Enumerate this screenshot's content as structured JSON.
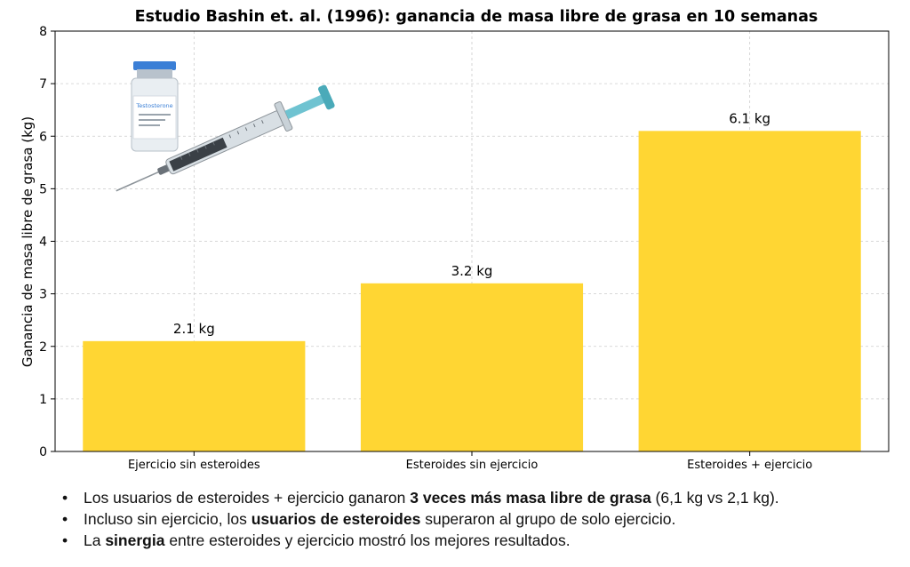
{
  "chart_data": {
    "type": "bar",
    "title": "Estudio Bashin et. al. (1996): ganancia de masa libre de grasa en 10 semanas",
    "xlabel": "",
    "ylabel": "Ganancia de masa libre de grasa (kg)",
    "ylim": [
      0,
      8
    ],
    "yticks": [
      "0",
      "1",
      "2",
      "3",
      "4",
      "5",
      "6",
      "7",
      "8"
    ],
    "categories": [
      "Ejercicio sin esteroides",
      "Esteroides sin ejercicio",
      "Esteroides + ejercicio"
    ],
    "values": [
      2.1,
      3.2,
      6.1
    ],
    "data_labels": [
      "2.1 kg",
      "3.2 kg",
      "6.1 kg"
    ],
    "grid": true,
    "bar_color": "#FFD633"
  },
  "illustration": {
    "vial_label": "Testosterone"
  },
  "bullets": [
    {
      "pre": "Los usuarios de esteroides + ejercicio ganaron ",
      "bold": "3 veces más masa libre de grasa",
      "post": " (6,1 kg vs 2,1 kg)."
    },
    {
      "pre": "Incluso sin ejercicio, los ",
      "bold": "usuarios de esteroides",
      "post": " superaron al grupo de solo ejercicio."
    },
    {
      "pre": "La ",
      "bold": "sinergia",
      "post": " entre esteroides y ejercicio mostró los mejores resultados."
    }
  ]
}
